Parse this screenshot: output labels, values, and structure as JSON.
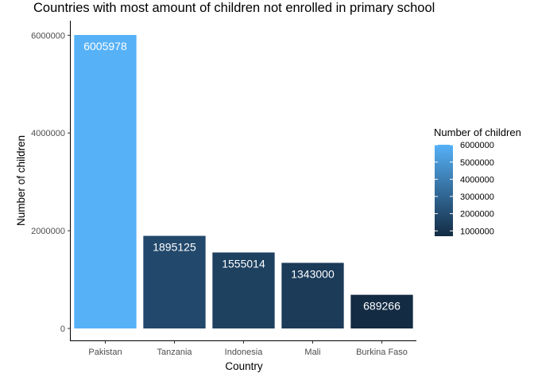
{
  "chart_data": {
    "type": "bar",
    "title": "Countries with most amount of children not enrolled in primary school",
    "xlabel": "Country",
    "ylabel": "Number of children",
    "categories": [
      "Pakistan",
      "Tanzania",
      "Indonesia",
      "Mali",
      "Burkina Faso"
    ],
    "values": [
      6005978,
      1895125,
      1555014,
      1343000,
      689266
    ],
    "data_labels": [
      "6005978",
      "1895125",
      "1555014",
      "1343000",
      "689266"
    ],
    "ylim": [
      0,
      6005978
    ],
    "yticks": [
      0,
      2000000,
      4000000,
      6000000
    ],
    "ytick_labels": [
      "0",
      "2000000",
      "4000000",
      "6000000"
    ],
    "grid": false,
    "legend": {
      "title": "Number of children",
      "placement": "right",
      "range": [
        689266,
        6005978
      ],
      "ticks": [
        1000000,
        2000000,
        3000000,
        4000000,
        5000000,
        6000000
      ],
      "tick_labels": [
        "1000000",
        "2000000",
        "3000000",
        "4000000",
        "5000000",
        "6000000"
      ],
      "low_color": "#132b43",
      "high_color": "#56b1f7"
    }
  }
}
